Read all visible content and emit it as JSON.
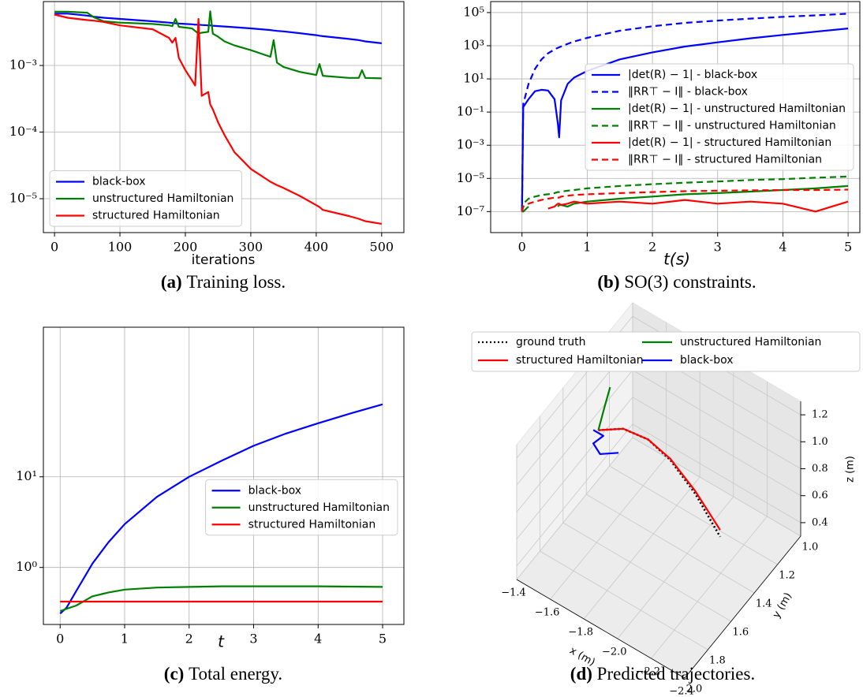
{
  "chart_data": [
    {
      "type": "line",
      "ylog": true,
      "xlabel": "iterations",
      "grid": true,
      "legend": "lower left",
      "caption_label": "(a)",
      "caption": "Training loss.",
      "xlim": [
        -17,
        534
      ],
      "ylim": [
        3.1e-06,
        0.0091
      ],
      "xticks": [
        0,
        100,
        200,
        300,
        400,
        500
      ],
      "yticks": [
        {
          "value": 1e-05,
          "label": "10⁻⁵"
        },
        {
          "value": 0.0001,
          "label": "10⁻⁴"
        },
        {
          "value": 0.001,
          "label": "10⁻³"
        }
      ],
      "x": [
        0,
        20,
        50,
        60,
        75,
        100,
        150,
        175,
        180,
        185,
        190,
        200,
        210,
        215,
        220,
        225,
        235,
        238,
        242,
        250,
        260,
        275,
        300,
        330,
        335,
        340,
        350,
        375,
        400,
        405,
        410,
        450,
        465,
        470,
        475,
        500
      ],
      "series": [
        {
          "name": "black-box",
          "color": "#0000ff",
          "values": [
            0.006,
            0.006,
            0.0056,
            0.0054,
            0.0052,
            0.005,
            0.0046,
            0.0044,
            0.00435,
            0.0043,
            0.00425,
            0.0042,
            0.00415,
            0.0041,
            0.0041,
            0.00405,
            0.004,
            0.004,
            0.00395,
            0.0039,
            0.00385,
            0.00375,
            0.0036,
            0.0034,
            0.00335,
            0.0033,
            0.00325,
            0.00305,
            0.00285,
            0.0028,
            0.00275,
            0.0025,
            0.0024,
            0.00235,
            0.0023,
            0.00215
          ]
        },
        {
          "name": "unstructured Hamiltonian",
          "color": "#008000",
          "values": [
            0.0064,
            0.0064,
            0.0062,
            0.0053,
            0.0046,
            0.0044,
            0.0042,
            0.004,
            0.0039,
            0.005,
            0.0038,
            0.0037,
            0.0036,
            0.0033,
            0.003,
            0.0031,
            0.0032,
            0.0065,
            0.003,
            0.0027,
            0.0023,
            0.002,
            0.0017,
            0.00135,
            0.0024,
            0.0011,
            0.00095,
            0.0008,
            0.00072,
            0.00105,
            0.0007,
            0.00065,
            0.00065,
            0.00085,
            0.00065,
            0.00064
          ]
        },
        {
          "name": "structured Hamiltonian",
          "color": "#ff0000",
          "values": [
            0.0058,
            0.0052,
            0.0048,
            0.0047,
            0.0045,
            0.004,
            0.0035,
            0.0026,
            0.0022,
            0.0026,
            0.0013,
            0.00085,
            0.0006,
            0.0005,
            0.005,
            0.00035,
            0.0004,
            0.00026,
            0.00022,
            0.00014,
            9e-05,
            5e-05,
            2.8e-05,
            1.8e-05,
            1.7e-05,
            1.6e-05,
            1.45e-05,
            1.1e-05,
            8e-06,
            7.5e-06,
            6.8e-06,
            5.5e-06,
            5e-06,
            4.8e-06,
            4.6e-06,
            4.2e-06
          ]
        }
      ]
    },
    {
      "type": "line",
      "ylog": true,
      "xlabel": "t(s)",
      "grid": true,
      "legend": "center right",
      "caption_label": "(b)",
      "caption": "SO(3) constraints.",
      "xlim": [
        -0.48,
        5.18
      ],
      "ylim": [
        5.4e-09,
        460000.0
      ],
      "xticks": [
        0,
        1,
        2,
        3,
        4,
        5
      ],
      "yticks": [
        {
          "value": 1e-07,
          "label": "10⁻⁷"
        },
        {
          "value": 1e-05,
          "label": "10⁻⁵"
        },
        {
          "value": 0.001,
          "label": "10⁻³"
        },
        {
          "value": 0.1,
          "label": "10⁻¹"
        },
        {
          "value": 10,
          "label": "10¹"
        },
        {
          "value": 1000,
          "label": "10³"
        },
        {
          "value": 100000,
          "label": "10⁵"
        }
      ],
      "x": [
        0,
        0.02,
        0.1,
        0.2,
        0.3,
        0.4,
        0.5,
        0.55,
        0.57,
        0.6,
        0.7,
        0.8,
        1,
        1.5,
        2,
        2.5,
        3,
        3.5,
        4,
        4.5,
        5
      ],
      "series": [
        {
          "name": "|det(R) − 1| - black-box",
          "color": "#0000ff",
          "linestyle": "solid",
          "values": [
            1e-07,
            0.2,
            0.6,
            1.8,
            2.2,
            2.0,
            0.6,
            0.02,
            0.003,
            0.5,
            5,
            12,
            30,
            150,
            400,
            900,
            1600,
            2800,
            4500,
            7000,
            11000
          ]
        },
        {
          "name": "‖RR⊤ − I‖ - black-box",
          "color": "#0000ff",
          "linestyle": "dashed",
          "values": [
            1e-07,
            0.3,
            5,
            40,
            150,
            350,
            600,
            750,
            800,
            900,
            1300,
            1800,
            3000,
            8000,
            15000,
            24000,
            33000,
            43000,
            55000,
            68000,
            85000
          ]
        },
        {
          "name": "|det(R) − 1| - unstructured Hamiltonian",
          "color": "#008000",
          "linestyle": "solid",
          "values": [
            1e-07,
            1e-07,
            2e-07,
            null,
            1.5e-07,
            null,
            null,
            2e-07,
            2.5e-07,
            2.5e-07,
            2e-07,
            3e-07,
            4e-07,
            6e-07,
            8e-07,
            1.1e-06,
            1.3e-06,
            1.6e-06,
            2e-06,
            2.5e-06,
            3.5e-06
          ]
        },
        {
          "name": "‖RR⊤ − I‖ - unstructured Hamiltonian",
          "color": "#008000",
          "linestyle": "dashed",
          "values": [
            1e-07,
            3e-07,
            6e-07,
            8e-07,
            1e-06,
            1.1e-06,
            1.3e-06,
            1.5e-06,
            1.5e-06,
            1.6e-06,
            1.8e-06,
            2e-06,
            2.5e-06,
            3.5e-06,
            4.5e-06,
            5.5e-06,
            6.5e-06,
            8e-06,
            9e-06,
            1.1e-05,
            1.3e-05
          ]
        },
        {
          "name": "|det(R) − 1| - structured Hamiltonian",
          "color": "#ff0000",
          "linestyle": "solid",
          "values": [
            1e-07,
            2e-07,
            null,
            1e-07,
            null,
            1.5e-07,
            2e-07,
            3e-07,
            3e-07,
            2.5e-07,
            3e-07,
            4e-07,
            3e-07,
            4e-07,
            3e-07,
            5e-07,
            3e-07,
            4e-07,
            3e-07,
            1e-07,
            4e-07
          ]
        },
        {
          "name": "‖RR⊤ − I‖ - structured Hamiltonian",
          "color": "#ff0000",
          "linestyle": "dashed",
          "values": [
            1e-07,
            2e-07,
            3e-07,
            4e-07,
            5e-07,
            6e-07,
            7e-07,
            7e-07,
            7e-07,
            8e-07,
            9e-07,
            1e-06,
            1.1e-06,
            1.3e-06,
            1.5e-06,
            1.7e-06,
            1.8e-06,
            1.9e-06,
            2e-06,
            2e-06,
            2.1e-06
          ]
        }
      ]
    },
    {
      "type": "line",
      "ylog": true,
      "xlabel": "t",
      "grid": true,
      "legend": "center right",
      "caption_label": "(c)",
      "caption": "Total energy.",
      "xlim": [
        -0.26,
        5.33
      ],
      "ylim": [
        0.235,
        447
      ],
      "xticks": [
        0,
        1,
        2,
        3,
        4,
        5
      ],
      "yticks": [
        {
          "value": 1,
          "label": "10⁰"
        },
        {
          "value": 10,
          "label": "10¹"
        }
      ],
      "x": [
        0,
        0.1,
        0.25,
        0.5,
        0.75,
        1,
        1.5,
        2,
        2.5,
        3,
        3.5,
        4,
        4.5,
        5
      ],
      "series": [
        {
          "name": "black-box",
          "color": "#0000ff",
          "values": [
            0.31,
            0.36,
            0.55,
            1.1,
            1.9,
            3.0,
            6.0,
            10,
            15,
            22,
            30,
            39,
            50,
            63
          ]
        },
        {
          "name": "unstructured Hamiltonian",
          "color": "#008000",
          "values": [
            0.33,
            0.35,
            0.38,
            0.48,
            0.53,
            0.57,
            0.6,
            0.61,
            0.62,
            0.62,
            0.62,
            0.62,
            0.615,
            0.61
          ]
        },
        {
          "name": "structured Hamiltonian",
          "color": "#ff0000",
          "values": [
            0.42,
            0.42,
            0.42,
            0.42,
            0.42,
            0.42,
            0.42,
            0.42,
            0.42,
            0.42,
            0.42,
            0.42,
            0.42,
            0.42
          ]
        }
      ]
    },
    {
      "type": "line3d",
      "grid": true,
      "legend": "upper center",
      "legend_ncol": 2,
      "caption_label": "(d)",
      "caption": "Predicted trajectories.",
      "xlabel": "x (m)",
      "ylabel": "y (m)",
      "zlabel": "z (m)",
      "xlim": [
        -1.4,
        -2.4
      ],
      "ylim": [
        1.0,
        2.0
      ],
      "zlim": [
        0.3,
        1.3
      ],
      "xticks": [
        {
          "value": -1.4,
          "label": "−1.4"
        },
        {
          "value": -1.6,
          "label": "−1.6"
        },
        {
          "value": -1.8,
          "label": "−1.8"
        },
        {
          "value": -2.0,
          "label": "−2.0"
        },
        {
          "value": -2.2,
          "label": "−2.2"
        },
        {
          "value": -2.4,
          "label": "−2.4"
        }
      ],
      "yticks": [
        {
          "value": 1.0,
          "label": "1.0"
        },
        1.2,
        1.4,
        1.6,
        1.8,
        {
          "value": 2.0,
          "label": "2.0"
        }
      ],
      "zticks": [
        0.4,
        0.6,
        0.8,
        {
          "value": 1.0,
          "label": "1.0"
        },
        1.2
      ],
      "series": [
        {
          "name": "ground truth",
          "color": "#000000",
          "linestyle": "dotted",
          "x": [
            -1.61,
            -1.71,
            -1.81,
            -1.9,
            -2.0,
            -2.1
          ],
          "y": [
            1.6,
            1.53,
            1.46,
            1.4,
            1.33,
            1.26
          ],
          "z": [
            1.14,
            1.15,
            1.07,
            0.92,
            0.67,
            0.35
          ]
        },
        {
          "name": "structured Hamiltonian",
          "color": "#ff0000",
          "linestyle": "solid",
          "x": [
            -1.61,
            -1.71,
            -1.81,
            -1.9,
            -2.0,
            -2.1
          ],
          "y": [
            1.6,
            1.53,
            1.46,
            1.4,
            1.33,
            1.26
          ],
          "z": [
            1.14,
            1.15,
            1.07,
            0.93,
            0.69,
            0.4
          ]
        },
        {
          "name": "unstructured Hamiltonian",
          "color": "#008000",
          "linestyle": "solid",
          "x": [
            -1.61,
            -1.645,
            -1.68
          ],
          "y": [
            1.6,
            1.6,
            1.6
          ],
          "z": [
            1.14,
            1.33,
            1.51
          ]
        },
        {
          "name": "black-box",
          "color": "#0000ff",
          "linestyle": "solid",
          "x": [
            -1.58,
            -1.64,
            -1.58,
            -1.62,
            -1.73
          ],
          "y": [
            1.6,
            1.6,
            1.6,
            1.6,
            1.6
          ],
          "z": [
            1.12,
            1.12,
            1.02,
            0.97,
            1.06
          ]
        }
      ]
    }
  ]
}
